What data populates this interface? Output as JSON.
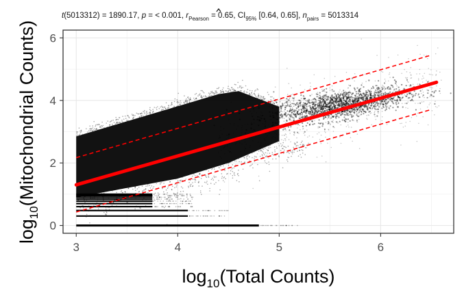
{
  "chart_data": {
    "type": "scatter",
    "subtitle": {
      "stat_label": "t",
      "stat_df": "(5013312) = 1890.17, ",
      "p_label": "p",
      "p_text": " = < 0.001, ",
      "r_label": "r",
      "r_sub": "Pearson",
      "r_text": " = 0.65, CI",
      "ci_sub": "95%",
      "ci_text": " [0.64, 0.65], ",
      "n_label": "n",
      "n_sub": "pairs",
      "n_text": " = 5013314"
    },
    "xlabel": {
      "prefix": "log",
      "sub": "10",
      "text": "(Total Counts)"
    },
    "ylabel": {
      "prefix": "log",
      "sub": "10",
      "text": "(Mitochondrial Counts)"
    },
    "xlim": [
      2.87,
      6.72
    ],
    "ylim": [
      -0.25,
      6.25
    ],
    "x_ticks": [
      3,
      4,
      5,
      6
    ],
    "x_tick_labels": [
      "3",
      "4",
      "5",
      "6"
    ],
    "y_ticks": [
      0,
      2,
      4,
      6
    ],
    "y_tick_labels": [
      "0",
      "2",
      "4",
      "6"
    ],
    "grid": true,
    "point_color": "#000000",
    "fit_line": {
      "x": [
        3.0,
        6.55
      ],
      "y": [
        1.3,
        4.58
      ],
      "color": "#ff0000"
    },
    "prediction_band": {
      "upper": {
        "x": [
          3.0,
          6.5
        ],
        "y": [
          2.17,
          5.45
        ]
      },
      "lower": {
        "x": [
          3.0,
          6.5
        ],
        "y": [
          0.43,
          3.71
        ]
      },
      "color": "#ff0000"
    },
    "discrete_levels_y": [
      0.0,
      0.301,
      0.477,
      0.602,
      0.699,
      0.778,
      0.845,
      0.903,
      0.954,
      1.0
    ],
    "dense_region": {
      "x_range": [
        3.0,
        5.0
      ],
      "upper_edge": {
        "x": [
          3.0,
          4.4,
          4.6,
          5.0
        ],
        "y": [
          2.85,
          4.2,
          4.3,
          3.8
        ]
      },
      "lower_edge": {
        "x": [
          3.0,
          4.0,
          4.5,
          5.0
        ],
        "y": [
          0.9,
          1.5,
          2.0,
          2.7
        ]
      }
    },
    "cluster": {
      "x_center": 5.6,
      "y_center": 3.85,
      "x_range": [
        4.9,
        6.3
      ],
      "y_range": [
        3.2,
        4.4
      ]
    }
  }
}
